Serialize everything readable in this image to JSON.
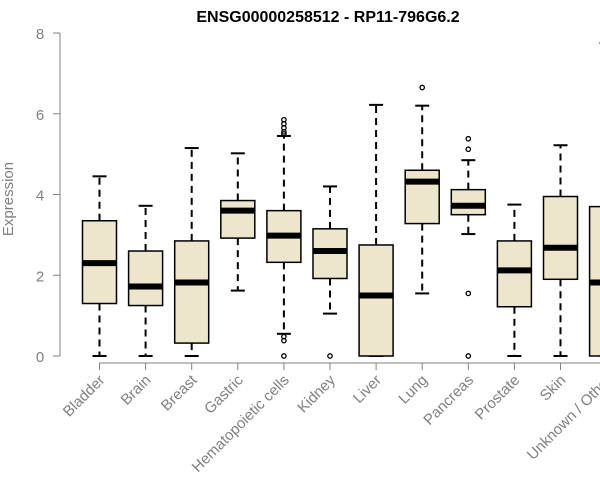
{
  "chart_data": {
    "type": "boxplot",
    "title": "ENSG00000258512 - RP11-796G6.2",
    "xlabel": "",
    "ylabel": "Expression",
    "ylim": [
      0,
      8
    ],
    "yticks": [
      0,
      2,
      4,
      6,
      8
    ],
    "box_fill": "#ede6cc",
    "line_color": "#000000",
    "axis_color": "#808080",
    "categories": [
      "Bladder",
      "Brain",
      "Breast",
      "Gastric",
      "Hematopoietic cells",
      "Kidney",
      "Liver",
      "Lung",
      "Pancreas",
      "Prostate",
      "Skin",
      "Unknown / Other"
    ],
    "boxes": [
      {
        "label": "Bladder",
        "whisker_low": 0.0,
        "q1": 1.3,
        "median": 2.3,
        "q3": 3.35,
        "whisker_high": 4.45,
        "outliers": []
      },
      {
        "label": "Brain",
        "whisker_low": 0.0,
        "q1": 1.25,
        "median": 1.72,
        "q3": 2.6,
        "whisker_high": 3.72,
        "outliers": []
      },
      {
        "label": "Breast",
        "whisker_low": 0.0,
        "q1": 0.32,
        "median": 1.82,
        "q3": 2.85,
        "whisker_high": 5.15,
        "outliers": []
      },
      {
        "label": "Gastric",
        "whisker_low": 1.62,
        "q1": 2.92,
        "median": 3.6,
        "q3": 3.85,
        "whisker_high": 5.02,
        "outliers": []
      },
      {
        "label": "Hematopoietic cells",
        "whisker_low": 0.55,
        "q1": 2.32,
        "median": 2.98,
        "q3": 3.6,
        "whisker_high": 5.45,
        "outliers": [
          0.0,
          0.38,
          0.48,
          5.5,
          5.55,
          5.65,
          5.75,
          5.85
        ]
      },
      {
        "label": "Kidney",
        "whisker_low": 1.05,
        "q1": 1.92,
        "median": 2.6,
        "q3": 3.15,
        "whisker_high": 4.2,
        "outliers": [
          0.0
        ]
      },
      {
        "label": "Liver",
        "whisker_low": 0.0,
        "q1": 0.0,
        "median": 1.5,
        "q3": 2.75,
        "whisker_high": 6.22,
        "outliers": []
      },
      {
        "label": "Lung",
        "whisker_low": 1.55,
        "q1": 3.28,
        "median": 4.32,
        "q3": 4.6,
        "whisker_high": 6.2,
        "outliers": [
          6.65
        ]
      },
      {
        "label": "Pancreas",
        "whisker_low": 3.02,
        "q1": 3.5,
        "median": 3.72,
        "q3": 4.12,
        "whisker_high": 4.85,
        "outliers": [
          0.0,
          1.55,
          5.12,
          5.38
        ]
      },
      {
        "label": "Prostate",
        "whisker_low": 0.0,
        "q1": 1.22,
        "median": 2.12,
        "q3": 2.85,
        "whisker_high": 3.75,
        "outliers": []
      },
      {
        "label": "Skin",
        "whisker_low": 0.0,
        "q1": 1.9,
        "median": 2.68,
        "q3": 3.95,
        "whisker_high": 5.22,
        "outliers": []
      },
      {
        "label": "Unknown / Other",
        "whisker_low": 0.0,
        "q1": 0.0,
        "median": 1.82,
        "q3": 3.7,
        "whisker_high": 7.75,
        "outliers": []
      }
    ]
  }
}
